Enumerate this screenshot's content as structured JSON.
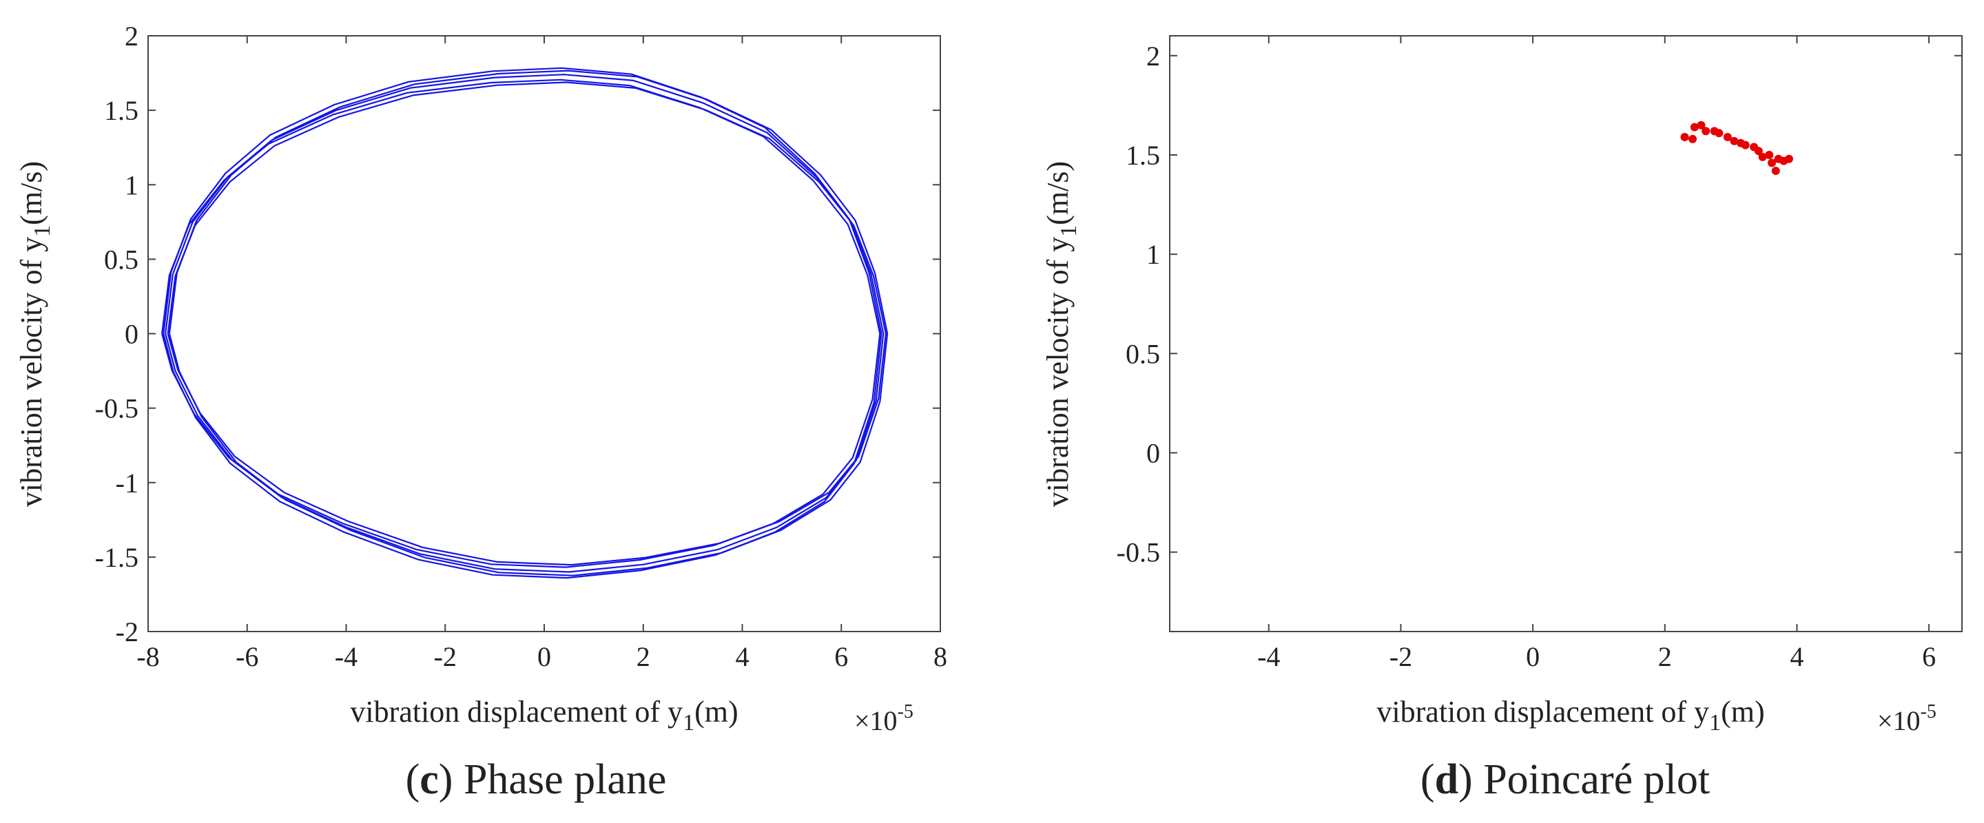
{
  "chart_data": [
    {
      "type": "line",
      "panel_letter": "c",
      "caption": "Phase plane",
      "xlabel": "vibration displacement of y",
      "xlabel_subscript": "1",
      "xlabel_unit": "(m)",
      "ylabel": "vibration velocity of y",
      "ylabel_subscript": "1",
      "ylabel_unit": "(m/s)",
      "x_exponent_base": "×10",
      "x_exponent": "-5",
      "xlim": [
        -8,
        8
      ],
      "ylim": [
        -2,
        2
      ],
      "x_scale": 1e-05,
      "xticks": [
        "-8",
        "-6",
        "-4",
        "-2",
        "0",
        "2",
        "4",
        "6",
        "8"
      ],
      "yticks": [
        "-2",
        "-1.5",
        "-1",
        "-0.5",
        "0",
        "0.5",
        "1",
        "1.5",
        "2"
      ],
      "grid": false,
      "series": [
        {
          "color": "#1414e6",
          "points": [
            [
              -7.65,
              0.0
            ],
            [
              -7.5,
              0.4
            ],
            [
              -7.1,
              0.75
            ],
            [
              -6.4,
              1.05
            ],
            [
              -5.5,
              1.3
            ],
            [
              -4.2,
              1.5
            ],
            [
              -2.7,
              1.65
            ],
            [
              -1.0,
              1.72
            ],
            [
              0.4,
              1.74
            ],
            [
              1.8,
              1.7
            ],
            [
              3.2,
              1.55
            ],
            [
              4.5,
              1.35
            ],
            [
              5.5,
              1.05
            ],
            [
              6.2,
              0.75
            ],
            [
              6.6,
              0.4
            ],
            [
              6.85,
              0.0
            ],
            [
              6.7,
              -0.45
            ],
            [
              6.3,
              -0.85
            ],
            [
              5.7,
              -1.1
            ],
            [
              4.7,
              -1.3
            ],
            [
              3.5,
              -1.45
            ],
            [
              2.0,
              -1.55
            ],
            [
              0.5,
              -1.6
            ],
            [
              -1.0,
              -1.58
            ],
            [
              -2.5,
              -1.48
            ],
            [
              -4.0,
              -1.3
            ],
            [
              -5.3,
              -1.1
            ],
            [
              -6.3,
              -0.85
            ],
            [
              -7.0,
              -0.55
            ],
            [
              -7.45,
              -0.25
            ],
            [
              -7.65,
              0.0
            ]
          ]
        }
      ]
    },
    {
      "type": "scatter",
      "panel_letter": "d",
      "caption": "Poincaré plot",
      "xlabel": "vibration displacement of y",
      "xlabel_subscript": "1",
      "xlabel_unit": "(m)",
      "ylabel": "vibration velocity of y",
      "ylabel_subscript": "1",
      "ylabel_unit": "(m/s)",
      "x_exponent_base": "×10",
      "x_exponent": "-5",
      "xlim": [
        -5.5,
        6.5
      ],
      "ylim": [
        -0.9,
        2.1
      ],
      "x_scale": 1e-05,
      "xticks": [
        "-4",
        "-2",
        "0",
        "2",
        "4",
        "6"
      ],
      "yticks": [
        "-0.5",
        "0",
        "0.5",
        "1",
        "1.5",
        "2"
      ],
      "grid": false,
      "series": [
        {
          "color": "#e60000",
          "points": [
            [
              2.3,
              1.59
            ],
            [
              2.42,
              1.58
            ],
            [
              2.45,
              1.64
            ],
            [
              2.55,
              1.65
            ],
            [
              2.62,
              1.62
            ],
            [
              2.75,
              1.62
            ],
            [
              2.82,
              1.61
            ],
            [
              2.95,
              1.59
            ],
            [
              3.05,
              1.57
            ],
            [
              3.15,
              1.56
            ],
            [
              3.22,
              1.55
            ],
            [
              3.35,
              1.54
            ],
            [
              3.42,
              1.52
            ],
            [
              3.48,
              1.49
            ],
            [
              3.58,
              1.5
            ],
            [
              3.62,
              1.46
            ],
            [
              3.68,
              1.42
            ],
            [
              3.72,
              1.48
            ],
            [
              3.8,
              1.47
            ],
            [
              3.88,
              1.48
            ]
          ]
        }
      ]
    }
  ]
}
